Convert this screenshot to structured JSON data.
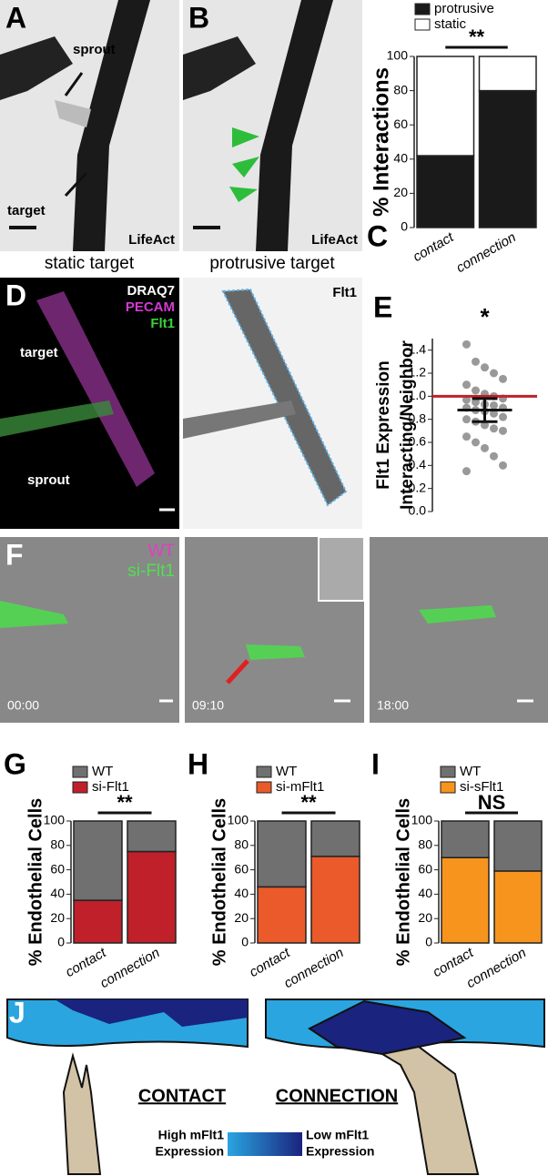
{
  "panels": {
    "A": {
      "letter": "A",
      "arrow_labels": [
        "sprout",
        "target"
      ],
      "stain": "LifeAct",
      "caption": "static target"
    },
    "B": {
      "letter": "B",
      "stain": "LifeAct",
      "caption": "protrusive target"
    },
    "D": {
      "letter": "D",
      "stains": [
        "DRAQ7",
        "PECAM",
        "Flt1"
      ],
      "arrow_labels": [
        "target",
        "sprout"
      ],
      "channel": "Flt1"
    },
    "F": {
      "letter": "F",
      "legend": [
        "WT",
        "si-Flt1"
      ],
      "timestamps": [
        "00:00",
        "09:10",
        "18:00"
      ]
    },
    "J": {
      "letter": "J",
      "states": [
        "CONTACT",
        "CONNECTION"
      ],
      "high": [
        "High mFlt1",
        "Expression"
      ],
      "low": [
        "Low mFlt1",
        "Expression"
      ]
    }
  },
  "chart_data": [
    {
      "type": "stacked_bar",
      "panel": "C",
      "y_label": [
        "% Interactions"
      ],
      "categories": [
        "contact",
        "connection"
      ],
      "series": [
        {
          "name": "protrusive",
          "color": "#1a1a1a",
          "values": [
            42,
            80
          ]
        },
        {
          "name": "static",
          "color": "#ffffff",
          "values": [
            58,
            20
          ]
        }
      ],
      "legend_order": [
        0,
        1
      ],
      "ylim": [
        0,
        100
      ],
      "yticks": [
        0,
        20,
        40,
        60,
        80,
        100
      ],
      "significance": "**"
    },
    {
      "type": "dot",
      "panel": "E",
      "y_label": [
        "Flt1 Expression",
        "Interacting/Neighbor"
      ],
      "color": "#999999",
      "values": [
        1.45,
        1.3,
        1.25,
        1.2,
        1.15,
        1.1,
        1.05,
        1.02,
        1.0,
        0.98,
        0.97,
        0.95,
        0.93,
        0.92,
        0.9,
        0.9,
        0.88,
        0.87,
        0.85,
        0.82,
        0.8,
        0.78,
        0.75,
        0.72,
        0.7,
        0.65,
        0.6,
        0.55,
        0.48,
        0.4,
        0.35
      ],
      "mean": 0.88,
      "error": 0.1,
      "reference": 1.0,
      "reference_color": "#c0202a",
      "ylim": [
        0,
        1.5
      ],
      "yticks": [
        {
          "value": 0,
          "label": "0.0"
        },
        0.2,
        0.4,
        0.6,
        0.8,
        {
          "value": 1,
          "label": "1.0"
        },
        1.2,
        1.4
      ],
      "significance": "*"
    },
    {
      "type": "stacked_bar",
      "panel": "G",
      "y_label": [
        "% Endothelial Cells"
      ],
      "categories": [
        "contact",
        "connection"
      ],
      "series": [
        {
          "name": "si-Flt1",
          "color": "#c0202a",
          "values": [
            35,
            75
          ]
        },
        {
          "name": "WT",
          "color": "#707070",
          "values": [
            65,
            25
          ]
        }
      ],
      "legend_order": [
        1,
        0
      ],
      "ylim": [
        0,
        100
      ],
      "yticks": [
        0,
        20,
        40,
        60,
        80,
        100
      ],
      "significance": "**"
    },
    {
      "type": "stacked_bar",
      "panel": "H",
      "y_label": [
        "% Endothelial Cells"
      ],
      "categories": [
        "contact",
        "connection"
      ],
      "series": [
        {
          "name": "si-mFlt1",
          "color": "#ea5a2a",
          "values": [
            46,
            71
          ]
        },
        {
          "name": "WT",
          "color": "#707070",
          "values": [
            54,
            29
          ]
        }
      ],
      "legend_order": [
        1,
        0
      ],
      "ylim": [
        0,
        100
      ],
      "yticks": [
        0,
        20,
        40,
        60,
        80,
        100
      ],
      "significance": "**"
    },
    {
      "type": "stacked_bar",
      "panel": "I",
      "y_label": [
        "% Endothelial Cells"
      ],
      "categories": [
        "contact",
        "connection"
      ],
      "series": [
        {
          "name": "si-sFlt1",
          "color": "#f7941d",
          "values": [
            70,
            59
          ]
        },
        {
          "name": "WT",
          "color": "#707070",
          "values": [
            30,
            41
          ]
        }
      ],
      "legend_order": [
        1,
        0
      ],
      "ylim": [
        0,
        100
      ],
      "yticks": [
        0,
        20,
        40,
        60,
        80,
        100
      ],
      "significance": "NS"
    }
  ]
}
